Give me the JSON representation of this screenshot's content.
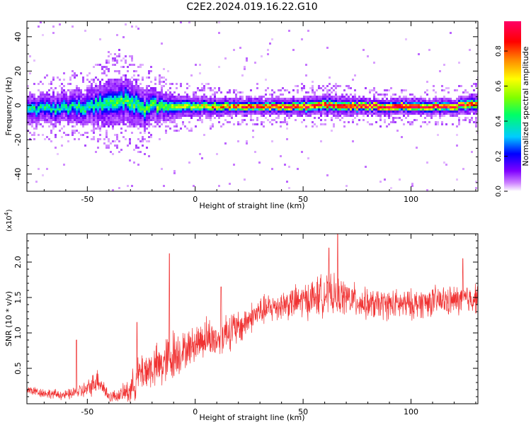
{
  "figure": {
    "title": "C2E2.2024.019.16.22.G10"
  },
  "colors": {
    "snr_line": "#f03232",
    "axis": "#000000",
    "background": "#ffffff"
  },
  "chart_data": [
    {
      "type": "heatmap",
      "xlabel": "Height of straight line (km)",
      "ylabel": "Frequency (Hz)",
      "xlim": [
        -78,
        131
      ],
      "ylim": [
        -50,
        49
      ],
      "x_ticks": [
        -50,
        0,
        50,
        100
      ],
      "x_tick_labels": [
        "-50",
        "0",
        "50",
        "100"
      ],
      "y_ticks": [
        -40,
        -20,
        0,
        20,
        40
      ],
      "y_tick_labels": [
        "-40",
        "-20",
        "0",
        "20",
        "40"
      ],
      "colorbar": {
        "label": "Normalized spectral amplitude",
        "range": [
          0,
          0.97
        ],
        "ticks": [
          0.0,
          0.2,
          0.4,
          0.6,
          0.8
        ],
        "tick_labels": [
          "0.0",
          "0.2",
          "0.4",
          "0.6",
          "0.8"
        ],
        "colormap": [
          "#ffffff",
          "#cc80ff",
          "#8000ff",
          "#0000ff",
          "#00ccff",
          "#00ff66",
          "#80ff00",
          "#ffff00",
          "#ff8000",
          "#ff0000",
          "#ff0066"
        ]
      },
      "description_points": {
        "center_frequency": [
          [
            -78,
            -2
          ],
          [
            -60,
            -1
          ],
          [
            -50,
            0
          ],
          [
            -40,
            2
          ],
          [
            -35,
            4
          ],
          [
            -30,
            3
          ],
          [
            -25,
            -2
          ],
          [
            -20,
            0
          ],
          [
            -10,
            0
          ],
          [
            0,
            0
          ],
          [
            10,
            0
          ],
          [
            20,
            0
          ],
          [
            30,
            0
          ],
          [
            40,
            0
          ],
          [
            50,
            0
          ],
          [
            60,
            1
          ],
          [
            70,
            0
          ],
          [
            80,
            0
          ],
          [
            90,
            0
          ],
          [
            100,
            0
          ],
          [
            110,
            0
          ],
          [
            120,
            0
          ],
          [
            131,
            2
          ]
        ],
        "band_halfwidth": [
          [
            -78,
            8
          ],
          [
            -60,
            9
          ],
          [
            -50,
            10
          ],
          [
            -40,
            14
          ],
          [
            -30,
            13
          ],
          [
            -20,
            10
          ],
          [
            -10,
            7
          ],
          [
            0,
            6
          ],
          [
            20,
            5
          ],
          [
            40,
            5
          ],
          [
            60,
            6
          ],
          [
            80,
            5
          ],
          [
            100,
            5
          ],
          [
            120,
            5
          ],
          [
            131,
            6
          ]
        ],
        "peak_amplitude": [
          [
            -78,
            0.35
          ],
          [
            -60,
            0.35
          ],
          [
            -40,
            0.4
          ],
          [
            -20,
            0.45
          ],
          [
            0,
            0.55
          ],
          [
            20,
            0.8
          ],
          [
            40,
            0.85
          ],
          [
            60,
            0.8
          ],
          [
            80,
            0.9
          ],
          [
            100,
            0.95
          ],
          [
            120,
            0.85
          ],
          [
            131,
            0.75
          ]
        ]
      }
    },
    {
      "type": "line",
      "xlabel": "Height of straight line (km)",
      "ylabel": "SNR (10 * v/v)",
      "scale_label": "(x10",
      "scale_exponent": "4",
      "scale_suffix": ")",
      "xlim": [
        -78,
        131
      ],
      "ylim": [
        0,
        2.4
      ],
      "x_ticks": [
        -50,
        0,
        50,
        100
      ],
      "x_tick_labels": [
        "-50",
        "0",
        "50",
        "100"
      ],
      "y_ticks": [
        0.5,
        1.0,
        1.5,
        2.0
      ],
      "y_tick_labels": [
        "0.5",
        "1.0",
        "1.5",
        "2.0"
      ],
      "series": [
        {
          "color": "#f03232",
          "trend_x": [
            -78,
            -70,
            -60,
            -50,
            -45,
            -40,
            -35,
            -30,
            -25,
            -20,
            -15,
            -10,
            -5,
            0,
            5,
            10,
            15,
            20,
            25,
            30,
            40,
            50,
            60,
            70,
            80,
            90,
            100,
            110,
            120,
            131
          ],
          "trend_y": [
            0.2,
            0.15,
            0.12,
            0.2,
            0.35,
            0.1,
            0.12,
            0.2,
            0.45,
            0.5,
            0.55,
            0.7,
            0.75,
            0.85,
            0.95,
            0.9,
            1.05,
            1.05,
            1.2,
            1.3,
            1.4,
            1.45,
            1.55,
            1.5,
            1.4,
            1.4,
            1.4,
            1.45,
            1.45,
            1.5
          ],
          "noise_amplitude": [
            0.08,
            0.08,
            0.08,
            0.15,
            0.2,
            0.1,
            0.1,
            0.25,
            0.35,
            0.35,
            0.4,
            0.45,
            0.3,
            0.3,
            0.35,
            0.3,
            0.35,
            0.3,
            0.25,
            0.25,
            0.25,
            0.3,
            0.35,
            0.3,
            0.25,
            0.25,
            0.25,
            0.25,
            0.25,
            0.25
          ],
          "peaks": [
            [
              -55,
              0.9
            ],
            [
              -27,
              1.15
            ],
            [
              -12,
              2.12
            ],
            [
              12,
              1.65
            ],
            [
              66,
              2.42
            ],
            [
              62,
              2.2
            ],
            [
              124,
              2.05
            ]
          ]
        }
      ]
    }
  ]
}
